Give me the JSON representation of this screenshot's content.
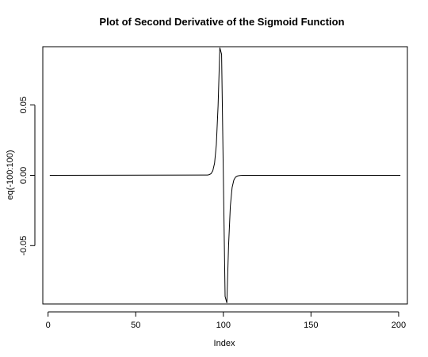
{
  "chart_data": {
    "type": "line",
    "title": "Plot of Second Derivative of the Sigmoid Function",
    "xlabel": "Index",
    "ylabel": "eq(-100:100)",
    "xlim": [
      -3,
      205
    ],
    "ylim": [
      -0.0915,
      0.0915
    ],
    "x_ticks": [
      0,
      50,
      100,
      150,
      200
    ],
    "x_tick_labels": [
      "0",
      "50",
      "100",
      "150",
      "200"
    ],
    "y_ticks": [
      -0.05,
      0.0,
      0.05
    ],
    "y_tick_labels": [
      "-0.05",
      "0.00",
      "0.05"
    ],
    "grid": false,
    "series": [
      {
        "name": "",
        "x": [
          1,
          91,
          92,
          93,
          94,
          95,
          96,
          97,
          98,
          99,
          100,
          101,
          102,
          103,
          104,
          105,
          106,
          107,
          108,
          109,
          110,
          111,
          201
        ],
        "values": [
          0.0,
          0.0002,
          0.0005,
          0.0012,
          0.0033,
          0.0087,
          0.0218,
          0.0495,
          0.0908,
          0.0861,
          0.0,
          -0.0861,
          -0.0908,
          -0.0495,
          -0.0218,
          -0.0087,
          -0.0033,
          -0.0012,
          -0.0005,
          -0.0002,
          -0.0001,
          0.0,
          0.0
        ]
      }
    ]
  }
}
